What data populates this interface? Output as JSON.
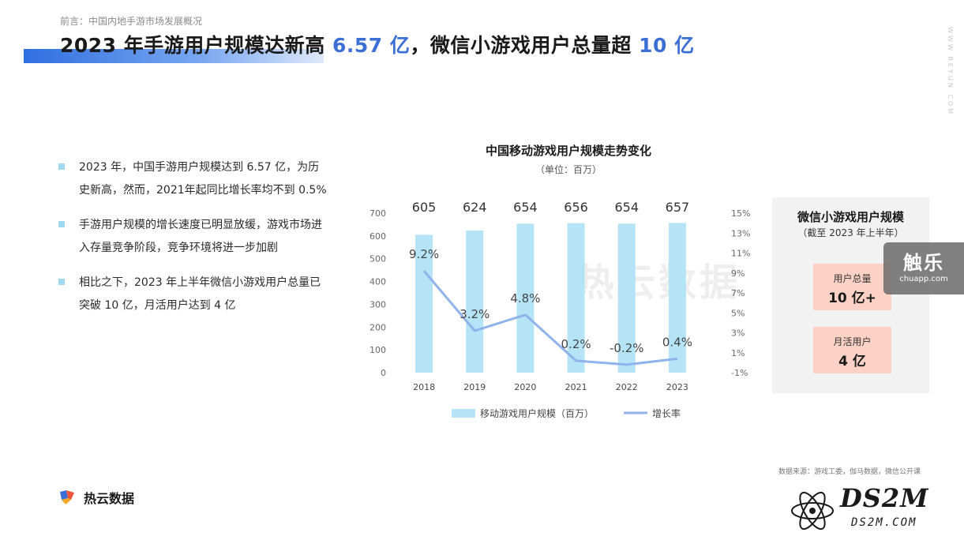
{
  "header": {
    "breadcrumb": "前言：中国内地手游市场发展概况",
    "title_part1": "2023 年手游用户规模达新高 ",
    "title_hl1": "6.57 亿",
    "title_part2": "，微信小游戏用户总量超 ",
    "title_hl2": "10 亿",
    "side_watermark": "WWW.REYUN.COM"
  },
  "bullets": [
    "2023 年，中国手游用户规模达到 6.57 亿，为历史新高，然而，2021年起同比增长率均不到 0.5%",
    "手游用户规模的增长速度已明显放缓，游戏市场进入存量竞争阶段，竞争环境将进一步加剧",
    "相比之下，2023 年上半年微信小游戏用户总量已突破 10 亿，月活用户达到 4 亿"
  ],
  "chart_data": {
    "type": "bar",
    "title": "中国移动游戏用户规模走势变化",
    "subtitle": "（单位：百万）",
    "categories": [
      "2018",
      "2019",
      "2020",
      "2021",
      "2022",
      "2023"
    ],
    "series": [
      {
        "name": "移动游戏用户规模（百万）",
        "type": "bar",
        "axis": "left",
        "values": [
          605,
          624,
          654,
          656,
          654,
          657
        ],
        "labels": [
          "605",
          "624",
          "654",
          "656",
          "654",
          "657"
        ],
        "color": "#b5e4f7"
      },
      {
        "name": "增长率",
        "type": "line",
        "axis": "right",
        "values": [
          9.2,
          3.2,
          4.8,
          0.2,
          -0.2,
          0.4
        ],
        "labels": [
          "9.2%",
          "3.2%",
          "4.8%",
          "0.2%",
          "-0.2%",
          "0.4%"
        ],
        "color": "#8fb3ea"
      }
    ],
    "ylim_left": [
      0,
      700
    ],
    "yticks_left": [
      "0",
      "100",
      "200",
      "300",
      "400",
      "500",
      "600",
      "700"
    ],
    "ylim_right": [
      -1,
      15
    ],
    "yticks_right": [
      "-1%",
      "1%",
      "3%",
      "5%",
      "7%",
      "9%",
      "11%",
      "13%",
      "15%"
    ],
    "legend_position": "bottom",
    "grid": false,
    "watermark": "热云数据"
  },
  "panel": {
    "title": "微信小游戏用户规模",
    "subtitle": "（截至 2023 年上半年）",
    "stats": [
      {
        "label": "用户总量",
        "value": "10 亿+"
      },
      {
        "label": "月活用户",
        "value": "4 亿"
      }
    ],
    "accent_color": "#fbd2c5"
  },
  "badge": {
    "name": "触乐",
    "url": "chuapp.com"
  },
  "footer": {
    "source": "数据来源：游戏工委，伽马数据，微信公开课",
    "logo_text": "热云数据",
    "ds2m_main": "DS2M",
    "ds2m_sub": "DS2M.COM"
  }
}
